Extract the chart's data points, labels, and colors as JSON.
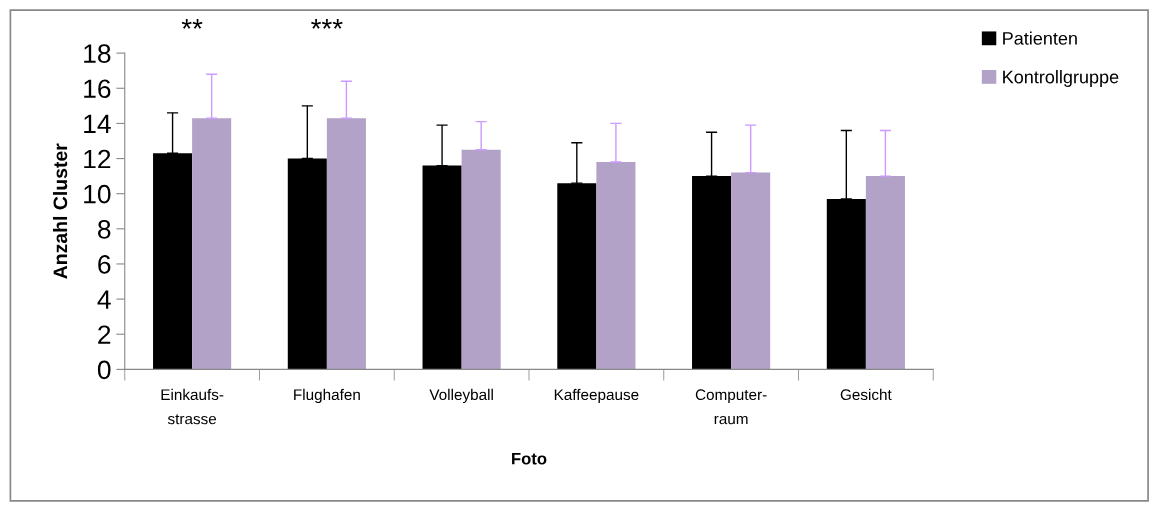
{
  "chart_data": {
    "type": "bar",
    "xlabel": "Foto",
    "ylabel": "Anzahl Cluster",
    "categories": [
      "Einkaufs-\nstrasse",
      "Flughafen",
      "Volleyball",
      "Kaffeepause",
      "Computer-\nraum",
      "Gesicht"
    ],
    "series": [
      {
        "name": "Patienten",
        "color": "#000000",
        "values": [
          12.3,
          12.0,
          11.6,
          10.6,
          11.0,
          9.7
        ],
        "errors": [
          [
            12.3,
            14.6
          ],
          [
            12.0,
            15.0
          ],
          [
            11.6,
            13.9
          ],
          [
            10.6,
            12.9
          ],
          [
            11.0,
            13.5
          ],
          [
            9.7,
            13.6
          ]
        ]
      },
      {
        "name": "Kontrollgruppe",
        "color": "#b3a2c7",
        "values": [
          14.3,
          14.3,
          12.5,
          11.8,
          11.2,
          11.0
        ],
        "errors": [
          [
            14.3,
            16.8
          ],
          [
            14.3,
            16.4
          ],
          [
            12.5,
            14.1
          ],
          [
            11.8,
            14.0
          ],
          [
            11.2,
            13.9
          ],
          [
            11.0,
            13.6
          ]
        ]
      }
    ],
    "ylim": [
      0,
      18
    ],
    "yticks": [
      0,
      2,
      4,
      6,
      8,
      10,
      12,
      14,
      16,
      18
    ],
    "grid": false,
    "legend": "top right",
    "annotations": [
      "**",
      "***"
    ]
  }
}
